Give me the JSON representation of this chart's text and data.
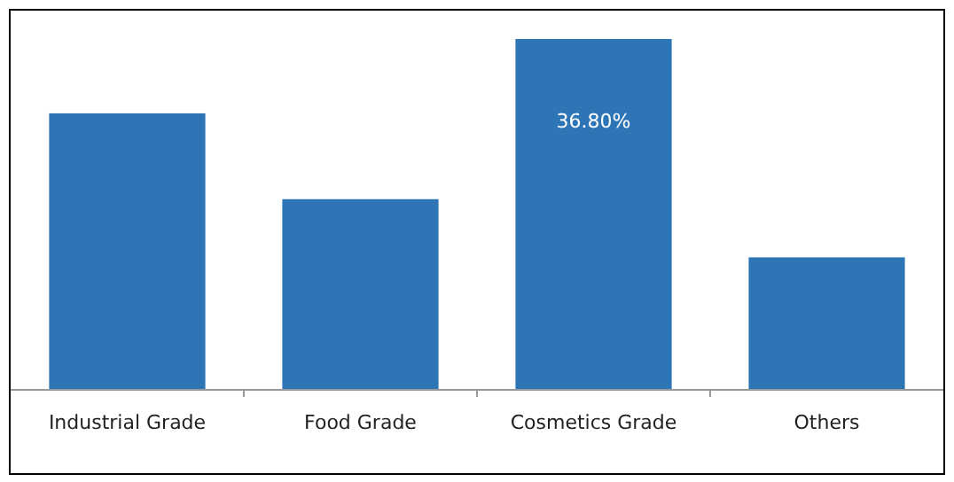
{
  "chart_data": {
    "type": "bar",
    "categories": [
      "Industrial Grade",
      "Food Grade",
      "Cosmetics Grade",
      "Others"
    ],
    "values": [
      29.0,
      20.0,
      36.8,
      13.9
    ],
    "value_labels": [
      null,
      null,
      "36.80%",
      null
    ],
    "color": "#2e75b6"
  }
}
